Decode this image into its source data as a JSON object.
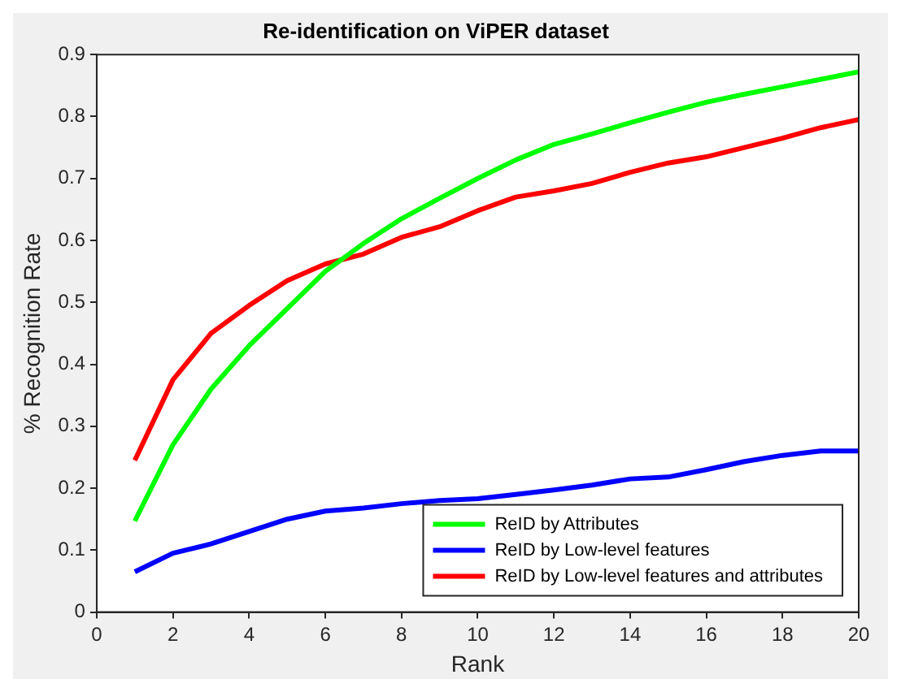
{
  "chart_data": {
    "type": "line",
    "title": "Re-identification on ViPER dataset",
    "xlabel": "Rank",
    "ylabel": "% Recognition Rate",
    "x": [
      1,
      2,
      3,
      4,
      5,
      6,
      7,
      8,
      9,
      10,
      11,
      12,
      13,
      14,
      15,
      16,
      17,
      18,
      19,
      20
    ],
    "series": [
      {
        "name": "ReID by Attributes",
        "color": "#00ff00",
        "values": [
          0.147,
          0.27,
          0.36,
          0.43,
          0.49,
          0.55,
          0.595,
          0.635,
          0.668,
          0.7,
          0.73,
          0.755,
          0.772,
          0.79,
          0.807,
          0.823,
          0.836,
          0.848,
          0.86,
          0.872
        ]
      },
      {
        "name": "ReID by Low-level features",
        "color": "#0000ff",
        "values": [
          0.065,
          0.095,
          0.11,
          0.13,
          0.15,
          0.163,
          0.168,
          0.175,
          0.18,
          0.183,
          0.19,
          0.197,
          0.205,
          0.215,
          0.218,
          0.23,
          0.243,
          0.253,
          0.26,
          0.26
        ]
      },
      {
        "name": "ReID by Low-level features and attributes",
        "color": "#ff0000",
        "values": [
          0.245,
          0.375,
          0.45,
          0.495,
          0.535,
          0.562,
          0.578,
          0.605,
          0.622,
          0.648,
          0.67,
          0.68,
          0.692,
          0.71,
          0.725,
          0.735,
          0.75,
          0.765,
          0.782,
          0.795
        ]
      }
    ],
    "xlim": [
      0,
      20
    ],
    "xticks": [
      0,
      2,
      4,
      6,
      8,
      10,
      12,
      14,
      16,
      18,
      20
    ],
    "ylim": [
      0,
      0.9
    ],
    "yticks": [
      0,
      0.1,
      0.2,
      0.3,
      0.4,
      0.5,
      0.6,
      0.7,
      0.8,
      0.9
    ],
    "grid": false,
    "legend": "bottom right",
    "marker": "none",
    "line_style": "solid"
  }
}
